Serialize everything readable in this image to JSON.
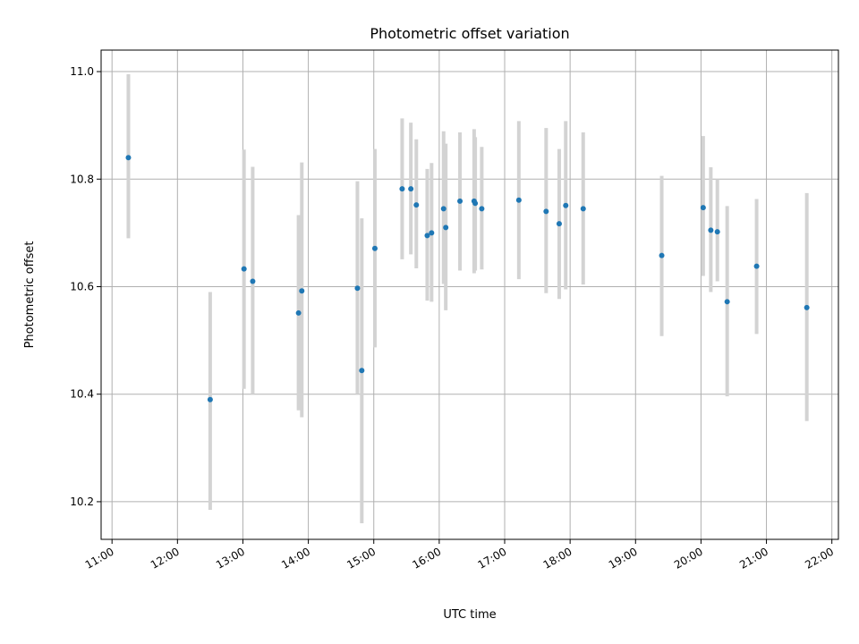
{
  "chart_data": {
    "type": "scatter",
    "title": "Photometric offset variation",
    "xlabel": "UTC time",
    "ylabel": "Photometric offset",
    "x_ticks": [
      "11:00",
      "12:00",
      "13:00",
      "14:00",
      "15:00",
      "16:00",
      "17:00",
      "18:00",
      "19:00",
      "20:00",
      "21:00",
      "22:00"
    ],
    "y_ticks": [
      "10.2",
      "10.4",
      "10.6",
      "10.8",
      "11.0"
    ],
    "xlim": [
      "10:50",
      "22:06"
    ],
    "ylim": [
      10.13,
      11.04
    ],
    "grid": true,
    "series": [
      {
        "marker_color": "#1f77b4",
        "errorbar_color": "#d3d3d3",
        "points": [
          {
            "x": "11:15",
            "y": 10.84,
            "ylo": 10.69,
            "yhi": 10.995
          },
          {
            "x": "12:30",
            "y": 10.39,
            "ylo": 10.185,
            "yhi": 10.59
          },
          {
            "x": "13:01",
            "y": 10.633,
            "ylo": 10.41,
            "yhi": 10.855
          },
          {
            "x": "13:09",
            "y": 10.61,
            "ylo": 10.4,
            "yhi": 10.823
          },
          {
            "x": "13:51",
            "y": 10.551,
            "ylo": 10.37,
            "yhi": 10.733
          },
          {
            "x": "13:54",
            "y": 10.592,
            "ylo": 10.357,
            "yhi": 10.831
          },
          {
            "x": "14:45",
            "y": 10.597,
            "ylo": 10.4,
            "yhi": 10.796
          },
          {
            "x": "14:49",
            "y": 10.444,
            "ylo": 10.16,
            "yhi": 10.727
          },
          {
            "x": "15:01",
            "y": 10.671,
            "ylo": 10.487,
            "yhi": 10.856
          },
          {
            "x": "15:26",
            "y": 10.782,
            "ylo": 10.651,
            "yhi": 10.913
          },
          {
            "x": "15:34",
            "y": 10.782,
            "ylo": 10.66,
            "yhi": 10.905
          },
          {
            "x": "15:39",
            "y": 10.752,
            "ylo": 10.634,
            "yhi": 10.874
          },
          {
            "x": "15:49",
            "y": 10.695,
            "ylo": 10.574,
            "yhi": 10.819
          },
          {
            "x": "15:53",
            "y": 10.7,
            "ylo": 10.572,
            "yhi": 10.83
          },
          {
            "x": "16:04",
            "y": 10.745,
            "ylo": 10.605,
            "yhi": 10.889
          },
          {
            "x": "16:06",
            "y": 10.71,
            "ylo": 10.556,
            "yhi": 10.866
          },
          {
            "x": "16:19",
            "y": 10.759,
            "ylo": 10.63,
            "yhi": 10.887
          },
          {
            "x": "16:32",
            "y": 10.759,
            "ylo": 10.625,
            "yhi": 10.893
          },
          {
            "x": "16:33",
            "y": 10.755,
            "ylo": 10.63,
            "yhi": 10.878
          },
          {
            "x": "16:39",
            "y": 10.745,
            "ylo": 10.632,
            "yhi": 10.86
          },
          {
            "x": "17:13",
            "y": 10.761,
            "ylo": 10.614,
            "yhi": 10.908
          },
          {
            "x": "17:38",
            "y": 10.74,
            "ylo": 10.588,
            "yhi": 10.895
          },
          {
            "x": "17:50",
            "y": 10.717,
            "ylo": 10.577,
            "yhi": 10.856
          },
          {
            "x": "17:56",
            "y": 10.751,
            "ylo": 10.595,
            "yhi": 10.908
          },
          {
            "x": "18:12",
            "y": 10.745,
            "ylo": 10.604,
            "yhi": 10.887
          },
          {
            "x": "19:24",
            "y": 10.658,
            "ylo": 10.508,
            "yhi": 10.806
          },
          {
            "x": "20:02",
            "y": 10.747,
            "ylo": 10.62,
            "yhi": 10.88
          },
          {
            "x": "20:09",
            "y": 10.705,
            "ylo": 10.59,
            "yhi": 10.822
          },
          {
            "x": "20:15",
            "y": 10.702,
            "ylo": 10.61,
            "yhi": 10.8
          },
          {
            "x": "20:24",
            "y": 10.572,
            "ylo": 10.396,
            "yhi": 10.75
          },
          {
            "x": "20:51",
            "y": 10.638,
            "ylo": 10.512,
            "yhi": 10.763
          },
          {
            "x": "21:37",
            "y": 10.561,
            "ylo": 10.35,
            "yhi": 10.774
          }
        ]
      }
    ]
  }
}
